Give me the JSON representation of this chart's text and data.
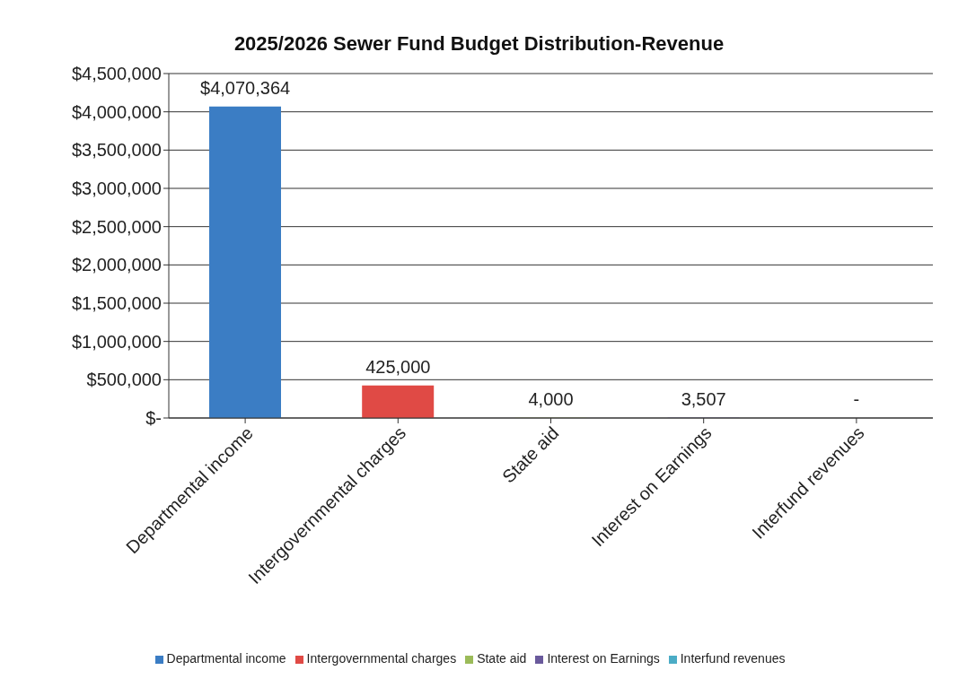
{
  "chart_data": {
    "type": "bar",
    "title": "2025/2026 Sewer Fund Budget Distribution-Revenue",
    "categories": [
      "Departmental income",
      "Intergovernmental charges",
      "State aid",
      "Interest on Earnings",
      "Interfund revenues"
    ],
    "stacked": true,
    "series": [
      {
        "name": "Departmental income",
        "color": "#3b7dc4",
        "values": [
          4070364,
          null,
          null,
          null,
          null
        ],
        "value_labels": [
          "$4,070,364",
          null,
          null,
          null,
          null
        ]
      },
      {
        "name": "Intergovernmental charges",
        "color": "#e04a45",
        "values": [
          null,
          425000,
          null,
          null,
          null
        ],
        "value_labels": [
          null,
          "425,000",
          null,
          null,
          null
        ]
      },
      {
        "name": "State aid",
        "color": "#9bbb59",
        "values": [
          null,
          null,
          4000,
          null,
          null
        ],
        "value_labels": [
          null,
          null,
          "4,000",
          null,
          null
        ]
      },
      {
        "name": "Interest on Earnings",
        "color": "#6a5a9c",
        "values": [
          null,
          null,
          null,
          3507,
          null
        ],
        "value_labels": [
          null,
          null,
          null,
          "3,507",
          null
        ]
      },
      {
        "name": "Interfund revenues",
        "color": "#4bacc6",
        "values": [
          null,
          null,
          null,
          null,
          0
        ],
        "value_labels": [
          null,
          null,
          null,
          null,
          "-"
        ]
      }
    ],
    "ylim": [
      0,
      4500000
    ],
    "yticks": [
      {
        "value": 0,
        "label": "$-"
      },
      {
        "value": 500000,
        "label": "$500,000"
      },
      {
        "value": 1000000,
        "label": "$1,000,000"
      },
      {
        "value": 1500000,
        "label": "$1,500,000"
      },
      {
        "value": 2000000,
        "label": "$2,000,000"
      },
      {
        "value": 2500000,
        "label": "$2,500,000"
      },
      {
        "value": 3000000,
        "label": "$3,000,000"
      },
      {
        "value": 3500000,
        "label": "$3,500,000"
      },
      {
        "value": 4000000,
        "label": "$4,000,000"
      },
      {
        "value": 4500000,
        "label": "$4,500,000"
      }
    ],
    "grid": "y",
    "legend": "bottom"
  }
}
